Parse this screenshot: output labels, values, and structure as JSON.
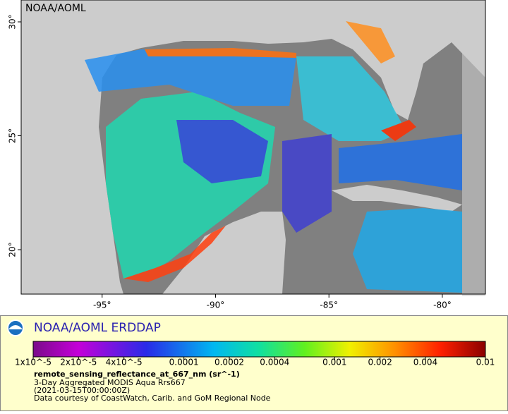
{
  "map": {
    "watermark": "NOAA/AOML",
    "xlim": [
      -98.57,
      -78.1
    ],
    "ylim": [
      18.05,
      30.96
    ],
    "lat_ticks": [
      {
        "value": 30,
        "label": "30°"
      },
      {
        "value": 25,
        "label": "25°"
      },
      {
        "value": 20,
        "label": "20°"
      }
    ],
    "lon_ticks": [
      {
        "value": -95,
        "label": "-95°"
      },
      {
        "value": -90,
        "label": "-90°"
      },
      {
        "value": -85,
        "label": "-85°"
      },
      {
        "value": -80,
        "label": "-80°"
      }
    ]
  },
  "legend": {
    "title": "NOAA/AOML ERDDAP",
    "log_scale": true,
    "colorbar_ticks": [
      {
        "value": 1e-05,
        "label": "1x10^-5"
      },
      {
        "value": 2e-05,
        "label": "2x10^-5"
      },
      {
        "value": 4e-05,
        "label": "4x10^-5"
      },
      {
        "value": 0.0001,
        "label": "0.0001"
      },
      {
        "value": 0.0002,
        "label": "0.0002"
      },
      {
        "value": 0.0004,
        "label": "0.0004"
      },
      {
        "value": 0.001,
        "label": "0.001"
      },
      {
        "value": 0.002,
        "label": "0.002"
      },
      {
        "value": 0.004,
        "label": "0.004"
      },
      {
        "value": 0.01,
        "label": "0.01"
      }
    ],
    "variable": "remote_sensing_reflectance_at_667_nm (sr^-1)",
    "lines": [
      "3-Day Aggregated MODIS Aqua Rrs667",
      "(2021-03-15T00:00:00Z)",
      "Data courtesy of CoastWatch, Carib. and GoM Regional Node"
    ]
  }
}
